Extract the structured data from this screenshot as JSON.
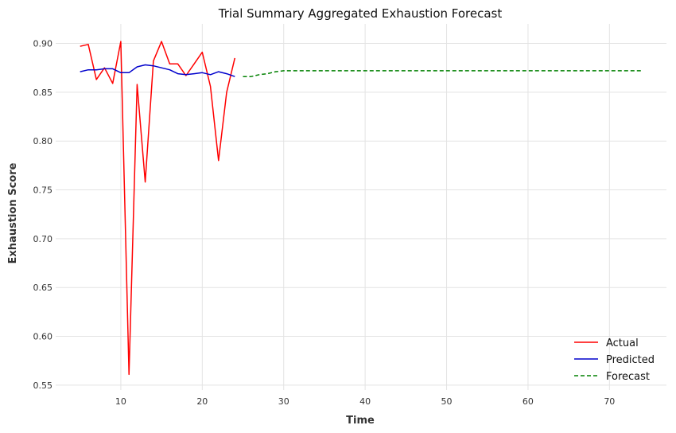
{
  "chart_data": {
    "type": "line",
    "title": "Trial Summary Aggregated Exhaustion Forecast",
    "xlabel": "Time",
    "ylabel": "Exhaustion Score",
    "xlim": [
      2,
      77
    ],
    "ylim": [
      0.545,
      0.92
    ],
    "x_ticks": [
      10,
      20,
      30,
      40,
      50,
      60,
      70
    ],
    "y_ticks": [
      0.55,
      0.6,
      0.65,
      0.7,
      0.75,
      0.8,
      0.85,
      0.9
    ],
    "grid": true,
    "legend_position": "bottom-right",
    "series": [
      {
        "name": "Actual",
        "color": "#ff0000",
        "dash": "solid",
        "x": [
          5,
          6,
          7,
          8,
          9,
          10,
          11,
          12,
          13,
          14,
          15,
          16,
          17,
          18,
          19,
          20,
          21,
          22,
          23,
          24
        ],
        "values": [
          0.897,
          0.899,
          0.863,
          0.875,
          0.859,
          0.902,
          0.561,
          0.858,
          0.758,
          0.882,
          0.902,
          0.879,
          0.879,
          0.867,
          0.879,
          0.891,
          0.856,
          0.78,
          0.85,
          0.885
        ]
      },
      {
        "name": "Predicted",
        "color": "#0000cc",
        "dash": "solid",
        "x": [
          5,
          6,
          7,
          8,
          9,
          10,
          11,
          12,
          13,
          14,
          15,
          16,
          17,
          18,
          19,
          20,
          21,
          22,
          23,
          24
        ],
        "values": [
          0.871,
          0.873,
          0.873,
          0.874,
          0.874,
          0.87,
          0.87,
          0.876,
          0.878,
          0.877,
          0.875,
          0.873,
          0.869,
          0.868,
          0.869,
          0.87,
          0.868,
          0.871,
          0.869,
          0.866
        ]
      },
      {
        "name": "Forecast",
        "color": "#008000",
        "dash": "dashed",
        "x": [
          25,
          26,
          27,
          28,
          29,
          30,
          35,
          40,
          45,
          50,
          55,
          60,
          65,
          70,
          74
        ],
        "values": [
          0.866,
          0.866,
          0.868,
          0.869,
          0.871,
          0.872,
          0.872,
          0.872,
          0.872,
          0.872,
          0.872,
          0.872,
          0.872,
          0.872,
          0.872
        ]
      }
    ]
  }
}
